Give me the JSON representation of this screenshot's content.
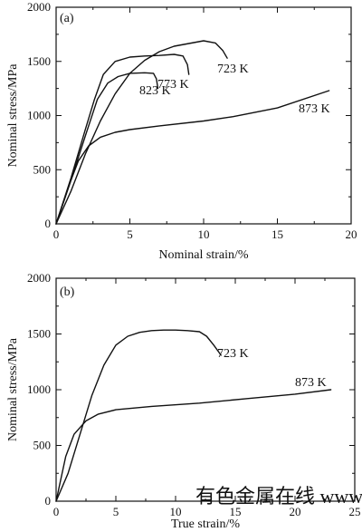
{
  "chart_data": [
    {
      "type": "line",
      "panel_label": "(a)",
      "xlabel": "Nominal strain/%",
      "ylabel": "Nominal stress/MPa",
      "xlim": [
        0,
        20
      ],
      "ylim": [
        0,
        2000
      ],
      "xticks": [
        "0",
        "5",
        "10",
        "15",
        "20"
      ],
      "yticks": [
        "0",
        "500",
        "1000",
        "1500",
        "2000"
      ],
      "grid": false,
      "series": [
        {
          "name": "723 K",
          "points": [
            [
              0,
              0
            ],
            [
              1,
              300
            ],
            [
              2,
              650
            ],
            [
              3,
              950
            ],
            [
              4,
              1200
            ],
            [
              5,
              1390
            ],
            [
              6,
              1510
            ],
            [
              7,
              1590
            ],
            [
              8,
              1640
            ],
            [
              9,
              1665
            ],
            [
              10,
              1690
            ],
            [
              10.8,
              1670
            ],
            [
              11.3,
              1600
            ],
            [
              11.6,
              1530
            ]
          ]
        },
        {
          "name": "773 K",
          "points": [
            [
              0,
              0
            ],
            [
              1,
              420
            ],
            [
              2,
              880
            ],
            [
              2.6,
              1150
            ],
            [
              3.2,
              1380
            ],
            [
              4,
              1500
            ],
            [
              5,
              1540
            ],
            [
              6,
              1550
            ],
            [
              7,
              1555
            ],
            [
              8,
              1565
            ],
            [
              8.6,
              1550
            ],
            [
              8.9,
              1470
            ],
            [
              9,
              1380
            ]
          ]
        },
        {
          "name": "823 K",
          "points": [
            [
              0,
              0
            ],
            [
              1,
              400
            ],
            [
              2,
              820
            ],
            [
              2.8,
              1150
            ],
            [
              3.5,
              1300
            ],
            [
              4.2,
              1360
            ],
            [
              5,
              1390
            ],
            [
              6,
              1395
            ],
            [
              6.6,
              1390
            ],
            [
              6.8,
              1340
            ],
            [
              6.9,
              1250
            ]
          ]
        },
        {
          "name": "873 K",
          "points": [
            [
              0,
              0
            ],
            [
              1,
              400
            ],
            [
              1.5,
              580
            ],
            [
              2.2,
              720
            ],
            [
              3,
              800
            ],
            [
              4,
              845
            ],
            [
              5,
              870
            ],
            [
              7,
              905
            ],
            [
              10,
              950
            ],
            [
              12,
              990
            ],
            [
              15,
              1070
            ],
            [
              18.5,
              1230
            ]
          ]
        }
      ]
    },
    {
      "type": "line",
      "panel_label": "(b)",
      "xlabel": "True strain/%",
      "ylabel": "Nominal stress/MPa",
      "xlim": [
        0,
        25
      ],
      "ylim": [
        0,
        2000
      ],
      "xticks": [
        "0",
        "5",
        "10",
        "15",
        "20",
        "25"
      ],
      "yticks": [
        "0",
        "500",
        "1000",
        "1500",
        "2000"
      ],
      "grid": false,
      "series": [
        {
          "name": "723 K",
          "points": [
            [
              0,
              0
            ],
            [
              1,
              250
            ],
            [
              2,
              600
            ],
            [
              3,
              950
            ],
            [
              4,
              1220
            ],
            [
              5,
              1400
            ],
            [
              6,
              1480
            ],
            [
              7,
              1515
            ],
            [
              8,
              1530
            ],
            [
              9,
              1535
            ],
            [
              10,
              1535
            ],
            [
              11,
              1530
            ],
            [
              12,
              1520
            ],
            [
              12.6,
              1480
            ],
            [
              13.2,
              1400
            ],
            [
              13.8,
              1310
            ]
          ]
        },
        {
          "name": "873 K",
          "points": [
            [
              0,
              0
            ],
            [
              0.8,
              400
            ],
            [
              1.5,
              600
            ],
            [
              2.5,
              720
            ],
            [
              3.5,
              780
            ],
            [
              5,
              820
            ],
            [
              8,
              850
            ],
            [
              12,
              880
            ],
            [
              16,
              920
            ],
            [
              20,
              960
            ],
            [
              23,
              1000
            ]
          ]
        }
      ]
    }
  ],
  "watermark": "有色金属在线  www.cnnmol.com"
}
